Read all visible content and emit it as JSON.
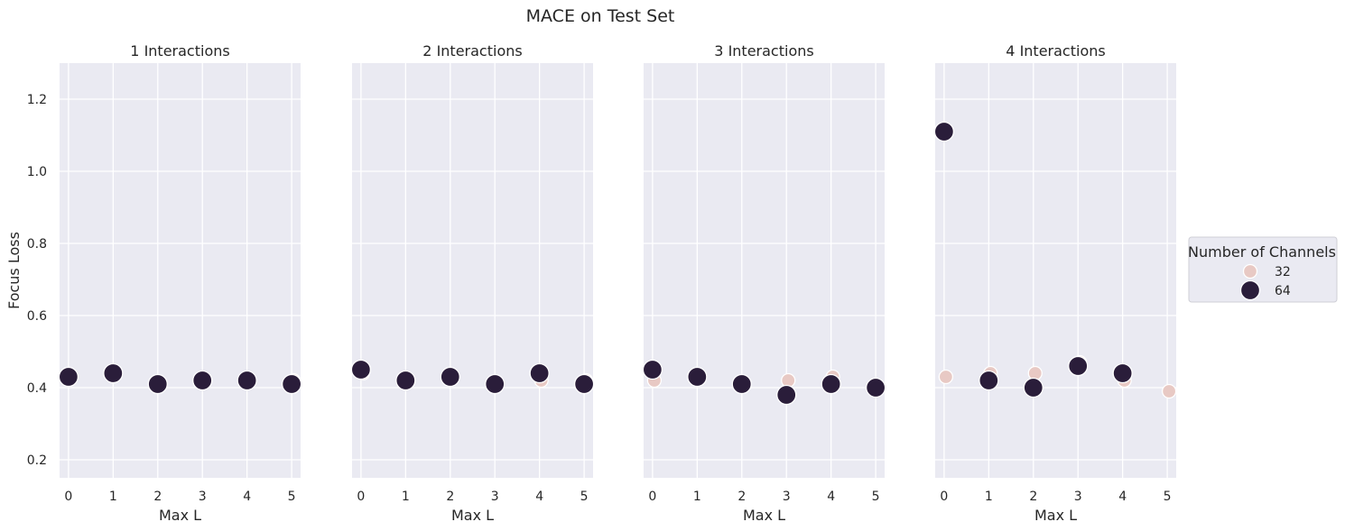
{
  "figure": {
    "suptitle": "MACE on Test Set",
    "ylabel": "Focus Loss"
  },
  "legend": {
    "title": "Number of Channels",
    "placement": "center-right",
    "entries": [
      {
        "label": "32",
        "color": "#e8c9c4"
      },
      {
        "label": "64",
        "color": "#2a1d3a"
      }
    ]
  },
  "colors": {
    "background": "#eaeaf2",
    "grid": "#ffffff",
    "series_32": "#e8c9c4",
    "series_64": "#2a1d3a",
    "marker_edge": "#ffffff"
  },
  "chart_data": [
    {
      "type": "scatter",
      "title": "1 Interactions",
      "xlabel": "Max L",
      "ylabel": "Focus Loss",
      "x_ticks": [
        0,
        1,
        2,
        3,
        4,
        5
      ],
      "y_ticks": [
        0.2,
        0.4,
        0.6,
        0.8,
        1.0,
        1.2
      ],
      "xlim": [
        -0.2,
        5.2
      ],
      "ylim": [
        0.15,
        1.3
      ],
      "grid": true,
      "series": [
        {
          "name": "32",
          "points": [
            [
              0,
              0.43
            ],
            [
              1,
              0.44
            ],
            [
              2,
              0.41
            ],
            [
              3,
              0.42
            ],
            [
              4,
              0.42
            ],
            [
              5,
              0.42
            ]
          ]
        },
        {
          "name": "64",
          "points": [
            [
              0,
              0.43
            ],
            [
              1,
              0.44
            ],
            [
              2,
              0.41
            ],
            [
              3,
              0.42
            ],
            [
              4,
              0.42
            ],
            [
              5,
              0.41
            ]
          ]
        }
      ]
    },
    {
      "type": "scatter",
      "title": "2 Interactions",
      "xlabel": "Max L",
      "x_ticks": [
        0,
        1,
        2,
        3,
        4,
        5
      ],
      "xlim": [
        -0.2,
        5.2
      ],
      "ylim": [
        0.15,
        1.3
      ],
      "grid": true,
      "series": [
        {
          "name": "32",
          "points": [
            [
              0,
              0.44
            ],
            [
              1,
              0.42
            ],
            [
              2,
              0.43
            ],
            [
              3,
              0.41
            ],
            [
              4,
              0.42
            ],
            [
              5,
              0.42
            ]
          ]
        },
        {
          "name": "64",
          "points": [
            [
              0,
              0.45
            ],
            [
              1,
              0.42
            ],
            [
              2,
              0.43
            ],
            [
              3,
              0.41
            ],
            [
              4,
              0.44
            ],
            [
              5,
              0.41
            ]
          ]
        }
      ]
    },
    {
      "type": "scatter",
      "title": "3 Interactions",
      "xlabel": "Max L",
      "x_ticks": [
        0,
        1,
        2,
        3,
        4,
        5
      ],
      "xlim": [
        -0.2,
        5.2
      ],
      "ylim": [
        0.15,
        1.3
      ],
      "grid": true,
      "series": [
        {
          "name": "32",
          "points": [
            [
              0,
              0.42
            ],
            [
              1,
              0.43
            ],
            [
              2,
              0.41
            ],
            [
              3,
              0.42
            ],
            [
              4,
              0.43
            ],
            [
              5,
              0.4
            ]
          ]
        },
        {
          "name": "64",
          "points": [
            [
              0,
              0.45
            ],
            [
              1,
              0.43
            ],
            [
              2,
              0.41
            ],
            [
              3,
              0.38
            ],
            [
              4,
              0.41
            ],
            [
              5,
              0.4
            ]
          ]
        }
      ]
    },
    {
      "type": "scatter",
      "title": "4 Interactions",
      "xlabel": "Max L",
      "x_ticks": [
        0,
        1,
        2,
        3,
        4,
        5
      ],
      "xlim": [
        -0.2,
        5.2
      ],
      "ylim": [
        0.15,
        1.3
      ],
      "grid": true,
      "series": [
        {
          "name": "32",
          "points": [
            [
              0,
              0.43
            ],
            [
              1,
              0.44
            ],
            [
              2,
              0.44
            ],
            [
              3,
              0.47
            ],
            [
              4,
              0.42
            ],
            [
              5,
              0.39
            ]
          ]
        },
        {
          "name": "64",
          "points": [
            [
              0,
              1.11
            ],
            [
              1,
              0.42
            ],
            [
              2,
              0.4
            ],
            [
              3,
              0.46
            ],
            [
              4,
              0.44
            ]
          ]
        }
      ]
    }
  ]
}
